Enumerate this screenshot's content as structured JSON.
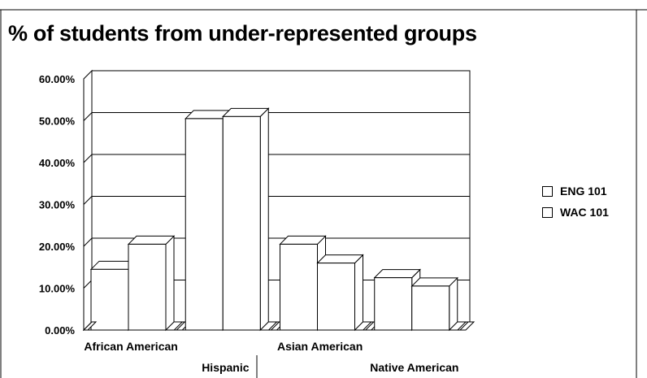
{
  "chart_data": {
    "type": "bar",
    "title": "% of students from under-represented groups",
    "categories": [
      "African American",
      "Hispanic",
      "Asian American",
      "Native American"
    ],
    "series": [
      {
        "name": "ENG 101",
        "values": [
          14.5,
          50.5,
          20.5,
          12.5
        ]
      },
      {
        "name": "WAC 101",
        "values": [
          20.5,
          51.0,
          16.0,
          10.5
        ]
      }
    ],
    "ylim": [
      0,
      60
    ],
    "yticks": [
      "0.00%",
      "10.00%",
      "20.00%",
      "30.00%",
      "40.00%",
      "50.00%",
      "60.00%"
    ],
    "grid": true,
    "legend_position": "right",
    "style": "3d-column"
  }
}
